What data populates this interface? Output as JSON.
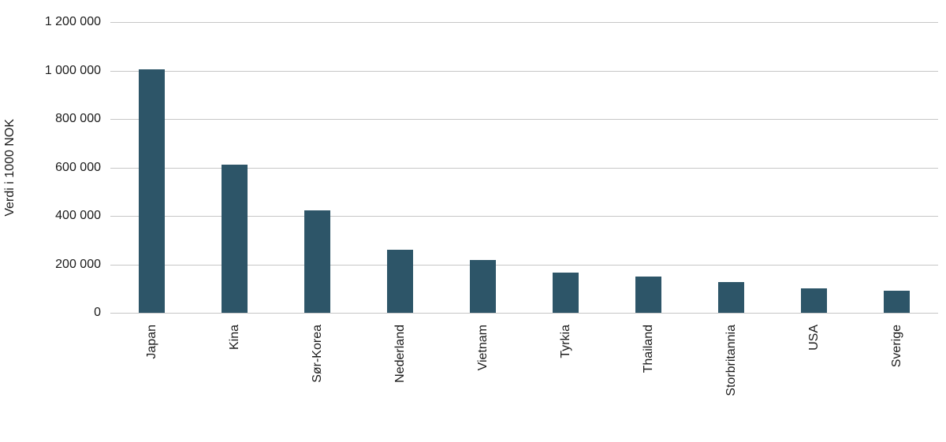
{
  "chart_data": {
    "type": "bar",
    "categories": [
      "Japan",
      "Kina",
      "Sør-Korea",
      "Nederland",
      "Vietnam",
      "Tyrkia",
      "Thailand",
      "Storbritannia",
      "USA",
      "Sverige"
    ],
    "values": [
      1005000,
      611000,
      423000,
      260000,
      219000,
      167000,
      150000,
      126000,
      100000,
      90000
    ],
    "title": "",
    "xlabel": "",
    "ylabel": "Verdi i 1000 NOK",
    "ylim": [
      0,
      1200000
    ],
    "ytick_interval": 200000,
    "yticks": [
      "1 200 000",
      "1 000 000",
      "800 000",
      "600 000",
      "400 000",
      "200 000",
      "0"
    ],
    "grid": "horizontal",
    "legend": "none",
    "bar_color": "#2d5568",
    "gridline_color": "#c6c6c6"
  }
}
